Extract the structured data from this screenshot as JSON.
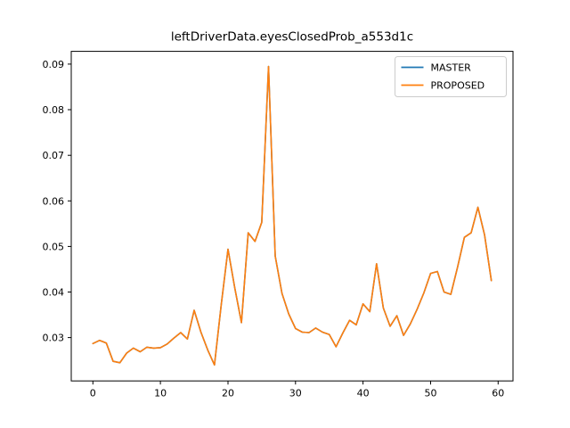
{
  "figure": {
    "background": "#ffffff",
    "title": "leftDriverData.eyesClosedProb_a553d1c"
  },
  "chart_data": {
    "type": "line",
    "title": "leftDriverData.eyesClosedProb_a553d1c",
    "xlabel": "",
    "ylabel": "",
    "grid": false,
    "legend_position": "upper right",
    "xlim": [
      -3.2,
      62.2
    ],
    "ylim": [
      0.0205,
      0.0928
    ],
    "xticks": [
      0,
      10,
      20,
      30,
      40,
      50,
      60
    ],
    "yticks": [
      0.03,
      0.04,
      0.05,
      0.06,
      0.07,
      0.08,
      0.09
    ],
    "ytick_labels": [
      "0.03",
      "0.04",
      "0.05",
      "0.06",
      "0.07",
      "0.08",
      "0.09"
    ],
    "x": [
      0,
      1,
      2,
      3,
      4,
      5,
      6,
      7,
      8,
      9,
      10,
      11,
      12,
      13,
      14,
      15,
      16,
      17,
      18,
      19,
      20,
      21,
      22,
      23,
      24,
      25,
      26,
      27,
      28,
      29,
      30,
      31,
      32,
      33,
      34,
      35,
      36,
      37,
      38,
      39,
      40,
      41,
      42,
      43,
      44,
      45,
      46,
      47,
      48,
      49,
      50,
      51,
      52,
      53,
      54,
      55,
      56,
      57,
      58,
      59
    ],
    "series": [
      {
        "name": "MASTER",
        "color": "#1f77b4",
        "note": "fully overlapped by PROPOSED line",
        "values": [
          0.0287,
          0.0294,
          0.0288,
          0.0248,
          0.0245,
          0.0266,
          0.0277,
          0.0269,
          0.0279,
          0.0277,
          0.0278,
          0.0286,
          0.0299,
          0.0311,
          0.0297,
          0.036,
          0.0312,
          0.0273,
          0.024,
          0.0372,
          0.0494,
          0.041,
          0.0333,
          0.053,
          0.0511,
          0.0553,
          0.0895,
          0.0479,
          0.0397,
          0.0352,
          0.032,
          0.0312,
          0.0311,
          0.0321,
          0.0312,
          0.0307,
          0.028,
          0.031,
          0.0338,
          0.0328,
          0.0374,
          0.0357,
          0.0462,
          0.0365,
          0.0325,
          0.0348,
          0.0305,
          0.033,
          0.0362,
          0.0398,
          0.0441,
          0.0445,
          0.04,
          0.0395,
          0.0455,
          0.052,
          0.053,
          0.0586,
          0.0525,
          0.0425
        ]
      },
      {
        "name": "PROPOSED",
        "color": "#ff7f0e",
        "values": [
          0.0287,
          0.0294,
          0.0288,
          0.0248,
          0.0245,
          0.0266,
          0.0277,
          0.0269,
          0.0279,
          0.0277,
          0.0278,
          0.0286,
          0.0299,
          0.0311,
          0.0297,
          0.036,
          0.0312,
          0.0273,
          0.024,
          0.0372,
          0.0494,
          0.041,
          0.0333,
          0.053,
          0.0511,
          0.0553,
          0.0895,
          0.0479,
          0.0397,
          0.0352,
          0.032,
          0.0312,
          0.0311,
          0.0321,
          0.0312,
          0.0307,
          0.028,
          0.031,
          0.0338,
          0.0328,
          0.0374,
          0.0357,
          0.0462,
          0.0365,
          0.0325,
          0.0348,
          0.0305,
          0.033,
          0.0362,
          0.0398,
          0.0441,
          0.0445,
          0.04,
          0.0395,
          0.0455,
          0.052,
          0.053,
          0.0586,
          0.0525,
          0.0425
        ]
      }
    ]
  }
}
